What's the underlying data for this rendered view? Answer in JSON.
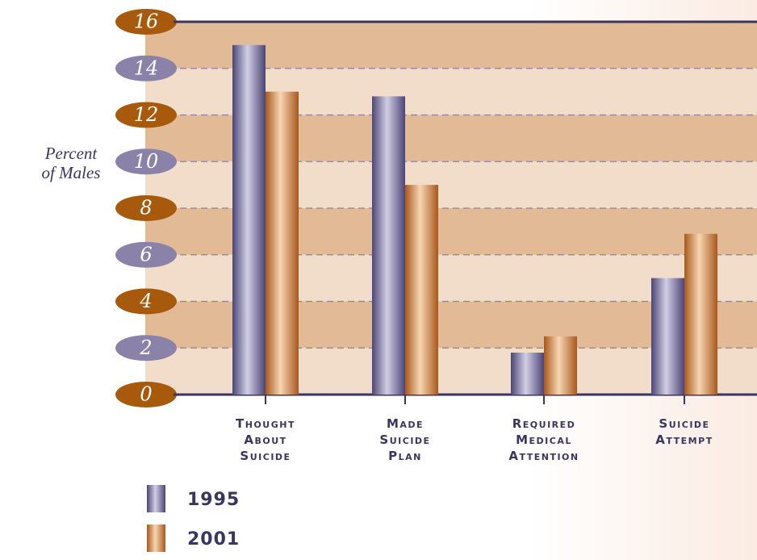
{
  "chart_data": {
    "type": "bar",
    "y_label": "Percent of Males",
    "categories": [
      "Thought About Suicide",
      "Made Suicide Plan",
      "Required Medical Attention",
      "Suicide Attempt"
    ],
    "series": [
      {
        "name": "1995",
        "color": "#4b4575",
        "values": [
          15,
          12.8,
          1.8,
          5
        ]
      },
      {
        "name": "2001",
        "color": "#a8581c",
        "values": [
          13,
          9,
          2.5,
          6.9
        ]
      }
    ],
    "ylim": [
      0,
      16
    ],
    "yticks": [
      0,
      2,
      4,
      6,
      8,
      10,
      12,
      14,
      16
    ],
    "grid": true
  }
}
